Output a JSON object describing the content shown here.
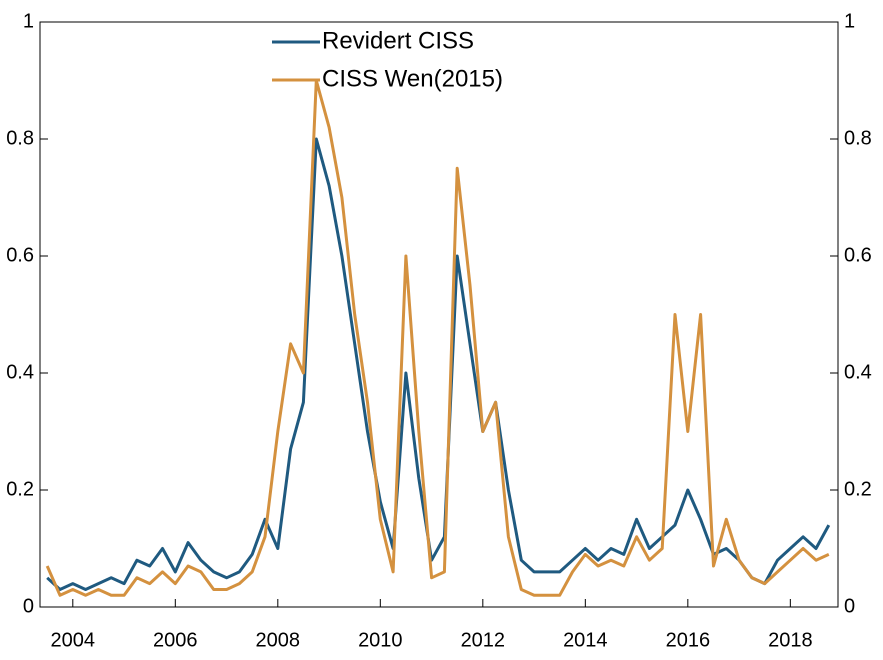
{
  "chart_data": {
    "type": "line",
    "x": [
      2003.5,
      2003.75,
      2004.0,
      2004.25,
      2004.5,
      2004.75,
      2005.0,
      2005.25,
      2005.5,
      2005.75,
      2006.0,
      2006.25,
      2006.5,
      2006.75,
      2007.0,
      2007.25,
      2007.5,
      2007.75,
      2008.0,
      2008.25,
      2008.5,
      2008.75,
      2009.0,
      2009.25,
      2009.5,
      2009.75,
      2010.0,
      2010.25,
      2010.5,
      2010.75,
      2011.0,
      2011.25,
      2011.5,
      2011.75,
      2012.0,
      2012.25,
      2012.5,
      2012.75,
      2013.0,
      2013.25,
      2013.5,
      2013.75,
      2014.0,
      2014.25,
      2014.5,
      2014.75,
      2015.0,
      2015.25,
      2015.5,
      2015.75,
      2016.0,
      2016.25,
      2016.5,
      2016.75,
      2017.0,
      2017.25,
      2017.5,
      2017.75,
      2018.0,
      2018.25,
      2018.5,
      2018.75
    ],
    "series": [
      {
        "name": "Revidert CISS",
        "color": "#1f5a80",
        "values": [
          0.05,
          0.03,
          0.04,
          0.03,
          0.04,
          0.05,
          0.04,
          0.08,
          0.07,
          0.1,
          0.06,
          0.11,
          0.08,
          0.06,
          0.05,
          0.06,
          0.09,
          0.15,
          0.1,
          0.27,
          0.35,
          0.8,
          0.72,
          0.6,
          0.45,
          0.3,
          0.18,
          0.1,
          0.4,
          0.22,
          0.08,
          0.12,
          0.6,
          0.45,
          0.3,
          0.35,
          0.2,
          0.08,
          0.06,
          0.06,
          0.06,
          0.08,
          0.1,
          0.08,
          0.1,
          0.09,
          0.15,
          0.1,
          0.12,
          0.14,
          0.2,
          0.15,
          0.09,
          0.1,
          0.08,
          0.05,
          0.04,
          0.08,
          0.1,
          0.12,
          0.1,
          0.14
        ]
      },
      {
        "name": "CISS Wen(2015)",
        "color": "#d4913f",
        "values": [
          0.07,
          0.02,
          0.03,
          0.02,
          0.03,
          0.02,
          0.02,
          0.05,
          0.04,
          0.06,
          0.04,
          0.07,
          0.06,
          0.03,
          0.03,
          0.04,
          0.06,
          0.12,
          0.3,
          0.45,
          0.4,
          0.9,
          0.82,
          0.7,
          0.5,
          0.35,
          0.15,
          0.06,
          0.6,
          0.3,
          0.05,
          0.06,
          0.75,
          0.55,
          0.3,
          0.35,
          0.12,
          0.03,
          0.02,
          0.02,
          0.02,
          0.06,
          0.09,
          0.07,
          0.08,
          0.07,
          0.12,
          0.08,
          0.1,
          0.5,
          0.3,
          0.5,
          0.07,
          0.15,
          0.08,
          0.05,
          0.04,
          0.06,
          0.08,
          0.1,
          0.08,
          0.09
        ]
      }
    ],
    "xlim": [
      2003.36,
      2018.93
    ],
    "xticks": [
      2004,
      2006,
      2008,
      2010,
      2012,
      2014,
      2016,
      2018
    ],
    "ylim": [
      0,
      1
    ],
    "yticks": [
      0,
      0.2,
      0.4,
      0.6,
      0.8,
      1
    ],
    "y2lim": [
      0,
      1
    ],
    "y2ticks": [
      0,
      0.2,
      0.4,
      0.6,
      0.8,
      1
    ],
    "grid": false,
    "legend": "upper center"
  }
}
